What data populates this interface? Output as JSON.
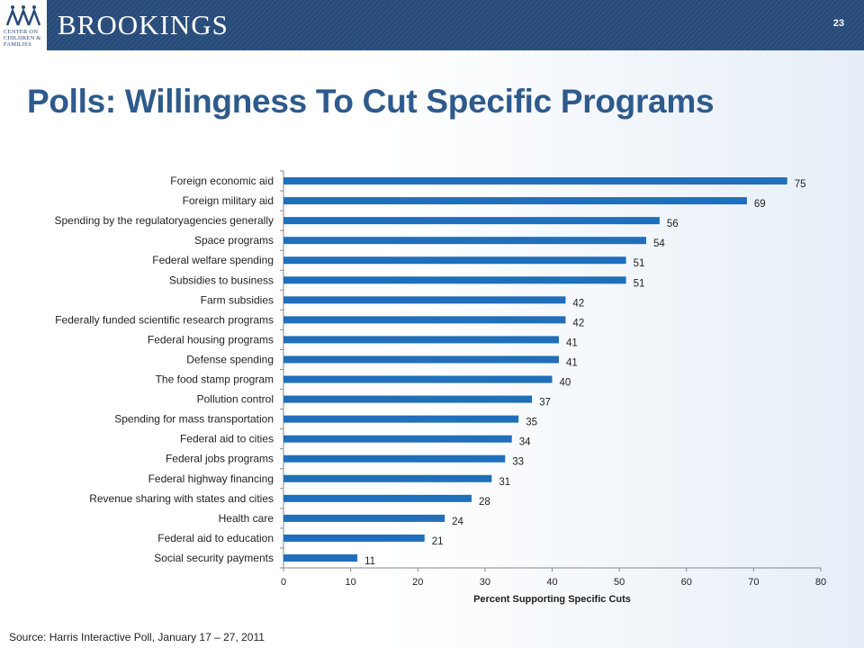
{
  "header": {
    "brand": "BROOKINGS",
    "logo_text": "Center on Children & Families",
    "page_number": "23",
    "colors": {
      "bar": "#274b7a",
      "logo": "#274b7a"
    }
  },
  "title": "Polls: Willingness To Cut Specific Programs",
  "source": "Source: Harris Interactive Poll, January 17 – 27, 2011",
  "chart_data": {
    "type": "bar",
    "orientation": "horizontal",
    "categories": [
      "Foreign economic aid",
      "Foreign military aid",
      "Spending by the regulatoryagencies generally",
      "Space programs",
      "Federal welfare spending",
      "Subsidies to business",
      "Farm subsidies",
      "Federally funded scientific research programs",
      "Federal housing programs",
      "Defense spending",
      "The food stamp program",
      "Pollution control",
      "Spending for mass transportation",
      "Federal aid to cities",
      "Federal jobs programs",
      "Federal highway financing",
      "Revenue sharing with states and cities",
      "Health care",
      "Federal aid to education",
      "Social security payments"
    ],
    "values": [
      75,
      69,
      56,
      54,
      51,
      51,
      42,
      42,
      41,
      41,
      40,
      37,
      35,
      34,
      33,
      31,
      28,
      24,
      21,
      11
    ],
    "xlabel": "Percent  Supporting Specific Cuts",
    "ylabel": "",
    "xlim": [
      0,
      80
    ],
    "xticks": [
      0,
      10,
      20,
      30,
      40,
      50,
      60,
      70,
      80
    ],
    "bar_color": "#1f6fbb",
    "data_labels": true,
    "grid": false
  }
}
